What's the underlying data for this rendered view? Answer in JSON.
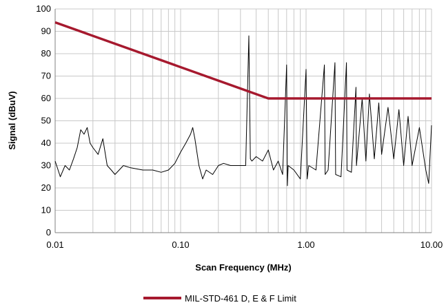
{
  "chart_data": {
    "type": "line",
    "title": "",
    "xlabel": "Scan Frequency (MHz)",
    "ylabel": "Signal (dBuV)",
    "x_scale": "log",
    "xlim": [
      0.01,
      10
    ],
    "ylim": [
      0,
      100
    ],
    "x_ticks": [
      0.01,
      0.1,
      1,
      10
    ],
    "x_tick_labels": [
      "0.01",
      "0.10",
      "1.00",
      "10.00"
    ],
    "y_ticks": [
      0,
      10,
      20,
      30,
      40,
      50,
      60,
      70,
      80,
      90,
      100
    ],
    "y_tick_labels": [
      "0",
      "10",
      "20",
      "30",
      "40",
      "50",
      "60",
      "70",
      "80",
      "90",
      "100"
    ],
    "grid": true,
    "grid_minor_x": true,
    "legend_position": "bottom-center",
    "series": [
      {
        "name": "MIL-STD-461 D, E & F Limit",
        "color": "#a6192e",
        "x": [
          0.01,
          0.5,
          10
        ],
        "y": [
          94,
          60,
          60
        ],
        "in_legend": true
      },
      {
        "color": "#000000",
        "in_legend": false,
        "x": [
          0.01,
          0.011,
          0.012,
          0.013,
          0.014,
          0.015,
          0.016,
          0.017,
          0.018,
          0.019,
          0.02,
          0.022,
          0.024,
          0.026,
          0.028,
          0.03,
          0.035,
          0.04,
          0.05,
          0.06,
          0.07,
          0.08,
          0.09,
          0.1,
          0.11,
          0.12,
          0.125,
          0.13,
          0.14,
          0.15,
          0.16,
          0.18,
          0.2,
          0.22,
          0.25,
          0.28,
          0.3,
          0.33,
          0.35,
          0.36,
          0.37,
          0.4,
          0.45,
          0.5,
          0.55,
          0.6,
          0.65,
          0.7,
          0.71,
          0.72,
          0.8,
          0.9,
          1.0,
          1.02,
          1.05,
          1.2,
          1.4,
          1.42,
          1.5,
          1.7,
          1.72,
          1.9,
          2.1,
          2.12,
          2.3,
          2.5,
          2.52,
          2.8,
          3.0,
          3.2,
          3.5,
          3.8,
          4.0,
          4.5,
          5.0,
          5.5,
          6.0,
          6.5,
          7.0,
          8.0,
          9.0,
          9.5,
          10.0
        ],
        "y": [
          32,
          25,
          30,
          28,
          33,
          38,
          46,
          44,
          47,
          40,
          38,
          35,
          42,
          30,
          28,
          26,
          30,
          29,
          28,
          28,
          27,
          28,
          31,
          36,
          40,
          44,
          47,
          42,
          30,
          24,
          28,
          26,
          30,
          31,
          30,
          30,
          30,
          30,
          88,
          33,
          32,
          34,
          32,
          37,
          28,
          32,
          26,
          75,
          21,
          30,
          28,
          24,
          73,
          24,
          30,
          28,
          75,
          26,
          28,
          76,
          26,
          25,
          76,
          28,
          27,
          65,
          30,
          60,
          32,
          62,
          33,
          58,
          35,
          56,
          33,
          55,
          30,
          52,
          30,
          47,
          28,
          22,
          48
        ]
      }
    ]
  }
}
